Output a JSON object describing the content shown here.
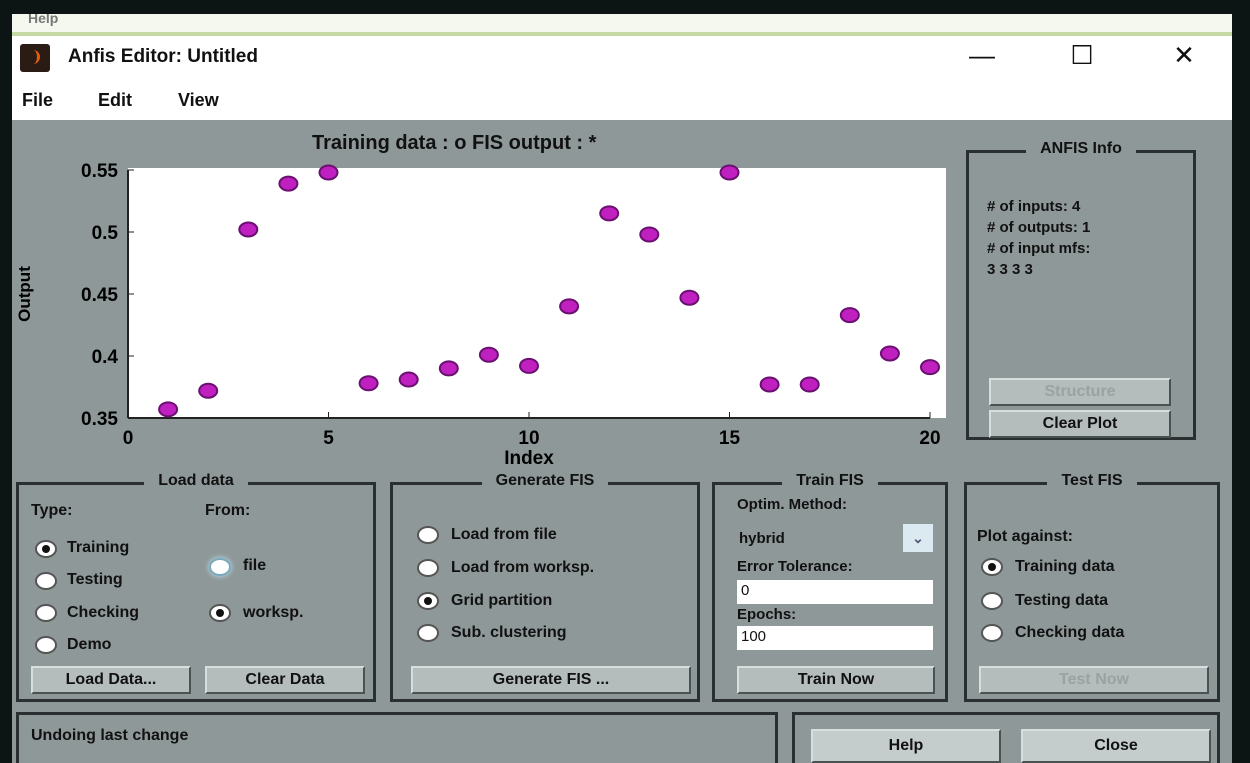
{
  "background_strip": {
    "menu_label": "Help"
  },
  "window": {
    "title": "Anfis Editor: Untitled",
    "minimize": "—",
    "maximize": "☐",
    "close": "✕"
  },
  "menu": [
    "File",
    "Edit",
    "View"
  ],
  "plot": {
    "title": "Training data : o   FIS output : *"
  },
  "chart_data": {
    "type": "scatter",
    "title": "Training data : o   FIS output : *",
    "xlabel": "Index",
    "ylabel": "Output",
    "xlim": [
      0,
      20
    ],
    "ylim": [
      0.35,
      0.55
    ],
    "xticks": [
      "0",
      "5",
      "10",
      "15",
      "20"
    ],
    "yticks": [
      "0.35",
      "0.4",
      "0.45",
      "0.5",
      "0.55"
    ],
    "marker_color": "#c020c0",
    "grid": false,
    "series": [
      {
        "name": "Training data",
        "x": [
          1,
          2,
          3,
          4,
          5,
          6,
          7,
          8,
          9,
          10,
          11,
          12,
          13,
          14,
          15,
          16,
          17,
          18,
          19,
          20
        ],
        "y": [
          0.357,
          0.372,
          0.502,
          0.539,
          0.548,
          0.378,
          0.381,
          0.39,
          0.401,
          0.392,
          0.44,
          0.515,
          0.498,
          0.447,
          0.548,
          0.377,
          0.377,
          0.433,
          0.402,
          0.391
        ]
      }
    ]
  },
  "anfis_info": {
    "title": "ANFIS Info",
    "lines": [
      "# of inputs: 4",
      "# of outputs: 1",
      "# of input mfs:",
      "3 3 3 3"
    ],
    "structure": "Structure",
    "clear_plot": "Clear Plot"
  },
  "load_data": {
    "title": "Load data",
    "type_label": "Type:",
    "from_label": "From:",
    "types": [
      "Training",
      "Testing",
      "Checking",
      "Demo"
    ],
    "selected_type": "Training",
    "sources": [
      "file",
      "worksp."
    ],
    "selected_source": "worksp.",
    "load_button": "Load Data...",
    "clear_button": "Clear Data"
  },
  "generate_fis": {
    "title": "Generate FIS",
    "options": [
      "Load from file",
      "Load from worksp.",
      "Grid partition",
      "Sub. clustering"
    ],
    "selected": "Grid partition",
    "button": "Generate FIS ..."
  },
  "train_fis": {
    "title": "Train FIS",
    "optim_label": "Optim. Method:",
    "method": "hybrid",
    "error_label": "Error Tolerance:",
    "error_value": "0",
    "epochs_label": "Epochs:",
    "epochs_value": "100",
    "button": "Train Now"
  },
  "test_fis": {
    "title": "Test FIS",
    "plot_against": "Plot against:",
    "options": [
      "Training data",
      "Testing data",
      "Checking data"
    ],
    "selected": "Training data",
    "button": "Test Now"
  },
  "status": {
    "text": "Undoing last change"
  },
  "footer": {
    "help": "Help",
    "close": "Close"
  }
}
